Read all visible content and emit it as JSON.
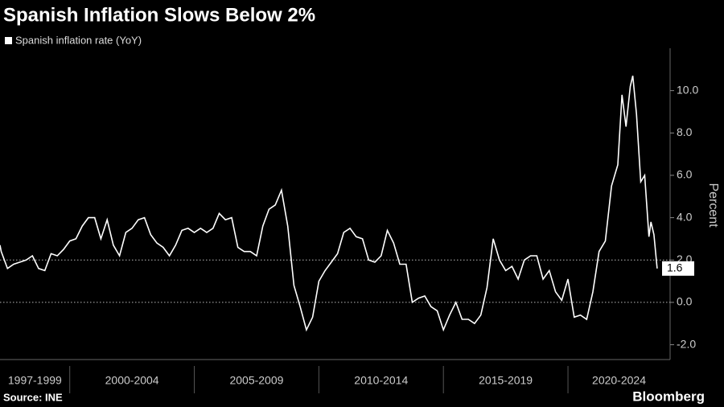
{
  "chart_data": {
    "type": "line",
    "title": "Spanish Inflation Slows Below 2%",
    "y_label": "Percent",
    "source": "Source: INE",
    "brand": "Bloomberg",
    "x_period_labels": [
      "1997-1999",
      "2000-2004",
      "2005-2009",
      "2010-2014",
      "2015-2019",
      "2020-2024"
    ],
    "xticks": [
      2000,
      2005,
      2010,
      2015,
      2020
    ],
    "xlim": [
      1997.2,
      2024.1
    ],
    "ylim": [
      -2.7,
      12.0
    ],
    "yticks": [
      {
        "value": -2,
        "label": "-2.0"
      },
      {
        "value": 0,
        "label": "0.0"
      },
      {
        "value": 2,
        "label": "2.0"
      },
      {
        "value": 4,
        "label": "4.0"
      },
      {
        "value": 6,
        "label": "6.0"
      },
      {
        "value": 8,
        "label": "8.0"
      },
      {
        "value": 10,
        "label": "10.0"
      }
    ],
    "reference_lines": [
      2,
      0
    ],
    "series": [
      {
        "name": "Spanish inflation rate (YoY)",
        "color": "#ffffff",
        "x": [
          1997.2,
          1997.25,
          1997.5,
          1997.75,
          1998.0,
          1998.25,
          1998.5,
          1998.75,
          1999.0,
          1999.25,
          1999.5,
          1999.75,
          2000.0,
          2000.25,
          2000.5,
          2000.75,
          2001.0,
          2001.25,
          2001.5,
          2001.75,
          2002.0,
          2002.25,
          2002.5,
          2002.75,
          2003.0,
          2003.25,
          2003.5,
          2003.75,
          2004.0,
          2004.25,
          2004.5,
          2004.75,
          2005.0,
          2005.25,
          2005.5,
          2005.75,
          2006.0,
          2006.25,
          2006.5,
          2006.75,
          2007.0,
          2007.25,
          2007.5,
          2007.75,
          2008.0,
          2008.25,
          2008.5,
          2008.75,
          2009.0,
          2009.25,
          2009.5,
          2009.75,
          2010.0,
          2010.25,
          2010.5,
          2010.75,
          2011.0,
          2011.25,
          2011.5,
          2011.75,
          2012.0,
          2012.25,
          2012.5,
          2012.75,
          2013.0,
          2013.25,
          2013.5,
          2013.75,
          2014.0,
          2014.25,
          2014.5,
          2014.75,
          2015.0,
          2015.25,
          2015.5,
          2015.75,
          2016.0,
          2016.25,
          2016.5,
          2016.75,
          2017.0,
          2017.25,
          2017.5,
          2017.75,
          2018.0,
          2018.25,
          2018.5,
          2018.75,
          2019.0,
          2019.25,
          2019.5,
          2019.75,
          2020.0,
          2020.25,
          2020.5,
          2020.75,
          2021.0,
          2021.25,
          2021.5,
          2021.75,
          2022.0,
          2022.17,
          2022.33,
          2022.5,
          2022.6,
          2022.75,
          2022.92,
          2023.08,
          2023.25,
          2023.33,
          2023.45,
          2023.58
        ],
        "values": [
          2.7,
          2.4,
          1.6,
          1.8,
          1.9,
          2.0,
          2.2,
          1.6,
          1.5,
          2.3,
          2.2,
          2.5,
          2.9,
          3.0,
          3.6,
          4.0,
          4.0,
          3.0,
          3.9,
          2.7,
          2.2,
          3.3,
          3.5,
          3.9,
          4.0,
          3.2,
          2.8,
          2.6,
          2.2,
          2.7,
          3.4,
          3.5,
          3.3,
          3.5,
          3.3,
          3.5,
          4.2,
          3.9,
          4.0,
          2.6,
          2.4,
          2.4,
          2.2,
          3.6,
          4.4,
          4.6,
          5.3,
          3.6,
          0.8,
          -0.2,
          -1.3,
          -0.7,
          1.0,
          1.5,
          1.9,
          2.3,
          3.3,
          3.5,
          3.1,
          3.0,
          2.0,
          1.9,
          2.2,
          3.4,
          2.8,
          1.8,
          1.8,
          0.0,
          0.2,
          0.3,
          -0.2,
          -0.4,
          -1.3,
          -0.6,
          0.0,
          -0.8,
          -0.8,
          -1.0,
          -0.6,
          0.7,
          3.0,
          2.0,
          1.5,
          1.7,
          1.1,
          2.0,
          2.2,
          2.2,
          1.1,
          1.5,
          0.5,
          0.1,
          1.1,
          -0.7,
          -0.6,
          -0.8,
          0.5,
          2.4,
          2.9,
          5.5,
          6.5,
          9.8,
          8.3,
          10.2,
          10.7,
          8.9,
          5.7,
          6.0,
          3.1,
          3.8,
          3.2,
          1.6
        ]
      }
    ]
  }
}
